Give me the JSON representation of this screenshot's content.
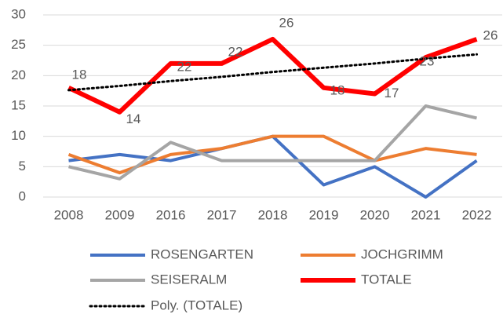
{
  "chart_data": {
    "type": "line",
    "categories": [
      "2008",
      "2009",
      "2016",
      "2017",
      "2018",
      "2019",
      "2020",
      "2021",
      "2022"
    ],
    "series": [
      {
        "name": "ROSENGARTEN",
        "color": "#4472c4",
        "values": [
          6,
          7,
          6,
          8,
          10,
          2,
          5,
          0,
          6
        ]
      },
      {
        "name": "JOCHGRIMM",
        "color": "#ed7d31",
        "values": [
          7,
          4,
          7,
          8,
          10,
          10,
          6,
          8,
          7
        ]
      },
      {
        "name": "SEISERALM",
        "color": "#a5a5a5",
        "values": [
          5,
          3,
          9,
          6,
          6,
          6,
          6,
          15,
          13
        ]
      },
      {
        "name": "TOTALE",
        "color": "#ff0000",
        "values": [
          18,
          14,
          22,
          22,
          26,
          18,
          17,
          23,
          26
        ],
        "data_labels": true
      },
      {
        "name": "Poly. (TOTALE)",
        "color": "#000000",
        "style": "dotted",
        "values": [
          17.6,
          18.3,
          19.1,
          19.8,
          20.6,
          21.3,
          22.0,
          22.8,
          23.5
        ]
      }
    ],
    "ylim": [
      0,
      30
    ],
    "yticks": [
      0,
      5,
      10,
      15,
      20,
      25,
      30
    ],
    "grid": true,
    "legend": "bottom"
  }
}
